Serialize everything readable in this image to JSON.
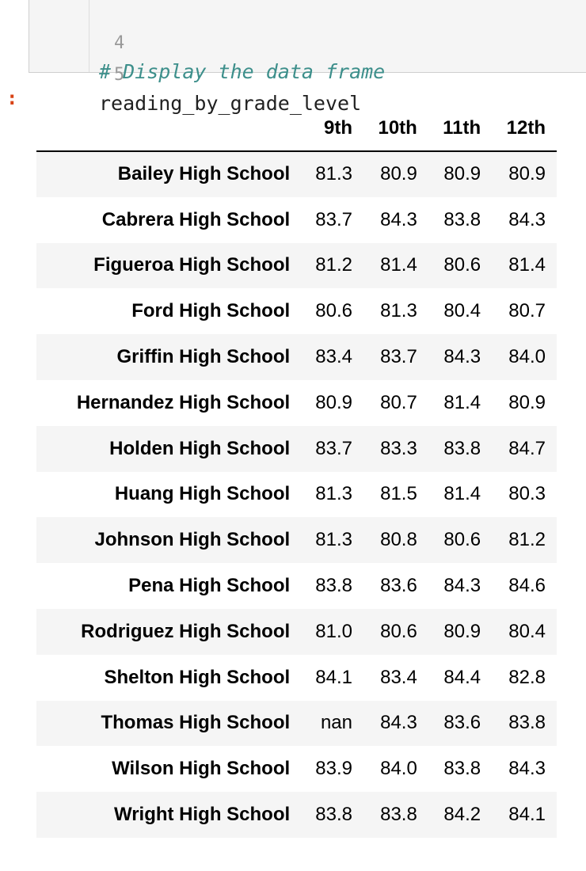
{
  "code_cell": {
    "lines": [
      {
        "number": "4",
        "text": "# Display the data frame",
        "is_comment": true
      },
      {
        "number": "5",
        "text": "reading_by_grade_level",
        "is_comment": false
      }
    ]
  },
  "output_prompt": ":",
  "dataframe": {
    "index_header": "",
    "columns": [
      "9th",
      "10th",
      "11th",
      "12th"
    ],
    "rows": [
      {
        "school": "Bailey High School",
        "values": [
          "81.3",
          "80.9",
          "80.9",
          "80.9"
        ]
      },
      {
        "school": "Cabrera High School",
        "values": [
          "83.7",
          "84.3",
          "83.8",
          "84.3"
        ]
      },
      {
        "school": "Figueroa High School",
        "values": [
          "81.2",
          "81.4",
          "80.6",
          "81.4"
        ]
      },
      {
        "school": "Ford High School",
        "values": [
          "80.6",
          "81.3",
          "80.4",
          "80.7"
        ]
      },
      {
        "school": "Griffin High School",
        "values": [
          "83.4",
          "83.7",
          "84.3",
          "84.0"
        ]
      },
      {
        "school": "Hernandez High School",
        "values": [
          "80.9",
          "80.7",
          "81.4",
          "80.9"
        ]
      },
      {
        "school": "Holden High School",
        "values": [
          "83.7",
          "83.3",
          "83.8",
          "84.7"
        ]
      },
      {
        "school": "Huang High School",
        "values": [
          "81.3",
          "81.5",
          "81.4",
          "80.3"
        ]
      },
      {
        "school": "Johnson High School",
        "values": [
          "81.3",
          "80.8",
          "80.6",
          "81.2"
        ]
      },
      {
        "school": "Pena High School",
        "values": [
          "83.8",
          "83.6",
          "84.3",
          "84.6"
        ]
      },
      {
        "school": "Rodriguez High School",
        "values": [
          "81.0",
          "80.6",
          "80.9",
          "80.4"
        ]
      },
      {
        "school": "Shelton High School",
        "values": [
          "84.1",
          "83.4",
          "84.4",
          "82.8"
        ]
      },
      {
        "school": "Thomas High School",
        "values": [
          "nan",
          "84.3",
          "83.6",
          "83.8"
        ]
      },
      {
        "school": "Wilson High School",
        "values": [
          "83.9",
          "84.0",
          "83.8",
          "84.3"
        ]
      },
      {
        "school": "Wright High School",
        "values": [
          "83.8",
          "83.8",
          "84.2",
          "84.1"
        ]
      }
    ]
  }
}
